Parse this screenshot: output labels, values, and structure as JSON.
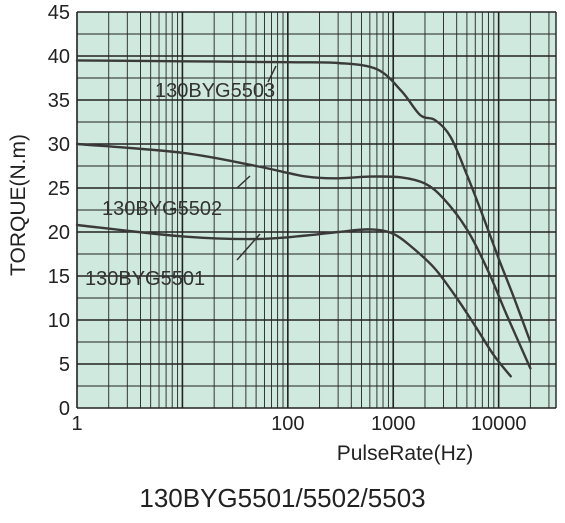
{
  "caption": "130BYG5501/5502/5503",
  "chart_data": {
    "type": "line",
    "title": "",
    "xlabel": "PulseRate(Hz)",
    "ylabel": "TORQUE(N.m)",
    "x_scale": "log",
    "xlim": [
      1,
      35000
    ],
    "ylim": [
      0,
      45
    ],
    "x_ticks": [
      1,
      100,
      1000,
      10000
    ],
    "x_tick_labels": [
      "1",
      "100",
      "1000",
      "10000"
    ],
    "y_ticks": [
      0,
      5,
      10,
      15,
      20,
      25,
      30,
      35,
      40,
      45
    ],
    "y_tick_labels": [
      "0",
      "5",
      "10",
      "15",
      "20",
      "25",
      "30",
      "35",
      "40",
      "45"
    ],
    "grid": true,
    "background": "#cfe9df",
    "line_color": "#3a3a3a",
    "series": [
      {
        "name": "130BYG5503",
        "x": [
          1,
          10,
          100,
          300,
          700,
          1200,
          1800,
          2500,
          3500,
          5000,
          7000,
          10000,
          14000,
          20000
        ],
        "y": [
          39.5,
          39.4,
          39.3,
          39.2,
          38.5,
          36.0,
          33.3,
          32.7,
          30.8,
          26.5,
          22.0,
          17.0,
          12.5,
          7.5
        ]
      },
      {
        "name": "130BYG5502",
        "x": [
          1,
          10,
          50,
          150,
          300,
          600,
          1200,
          2000,
          3000,
          5000,
          8000,
          12000,
          20000
        ],
        "y": [
          30.0,
          29.0,
          27.5,
          26.3,
          26.1,
          26.3,
          26.2,
          25.5,
          23.8,
          20.3,
          15.5,
          10.5,
          4.5
        ]
      },
      {
        "name": "130BYG5501",
        "x": [
          1,
          10,
          50,
          150,
          300,
          600,
          1000,
          1600,
          2500,
          4000,
          6000,
          9000,
          13000
        ],
        "y": [
          20.8,
          19.5,
          19.2,
          19.6,
          20.0,
          20.3,
          19.8,
          18.0,
          15.8,
          12.5,
          9.3,
          6.0,
          3.6
        ]
      }
    ],
    "annotations": [
      "130BYG5503",
      "130BYG5502",
      "130BYG5501"
    ]
  }
}
